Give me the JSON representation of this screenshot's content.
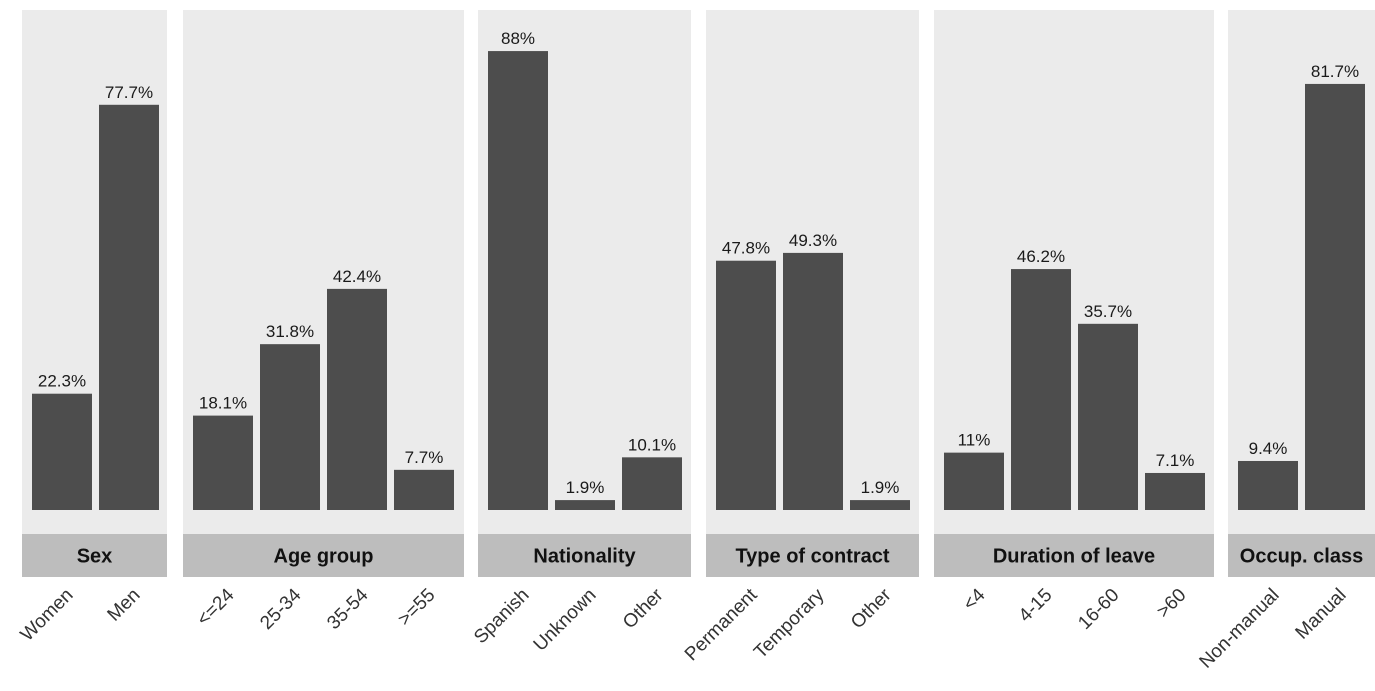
{
  "chart_data": {
    "type": "bar",
    "y_unit": "%",
    "ylim": [
      0,
      93
    ],
    "grid": false,
    "colors": {
      "bar": "#4d4d4d",
      "panel": "#ebebeb",
      "strip": "#bdbdbd"
    },
    "facets": [
      {
        "name": "Sex",
        "categories": [
          "Women",
          "Men"
        ],
        "values": [
          22.3,
          77.7
        ],
        "labels": [
          "22.3%",
          "77.7%"
        ]
      },
      {
        "name": "Age group",
        "categories": [
          "<=24",
          "25-34",
          "35-54",
          ">=55"
        ],
        "values": [
          18.1,
          31.8,
          42.4,
          7.7
        ],
        "labels": [
          "18.1%",
          "31.8%",
          "42.4%",
          "7.7%"
        ]
      },
      {
        "name": "Nationality",
        "categories": [
          "Spanish",
          "Unknown",
          "Other"
        ],
        "values": [
          88,
          1.9,
          10.1
        ],
        "labels": [
          "88%",
          "1.9%",
          "10.1%"
        ]
      },
      {
        "name": "Type of contract",
        "categories": [
          "Permanent",
          "Temporary",
          "Other"
        ],
        "values": [
          47.8,
          49.3,
          1.9
        ],
        "labels": [
          "47.8%",
          "49.3%",
          "1.9%"
        ]
      },
      {
        "name": "Duration of leave",
        "categories": [
          "<4",
          "4-15",
          "16-60",
          ">60"
        ],
        "values": [
          11,
          46.2,
          35.7,
          7.1
        ],
        "labels": [
          "11%",
          "46.2%",
          "35.7%",
          "7.1%"
        ]
      },
      {
        "name": "Occup. class",
        "categories": [
          "Non-manual",
          "Manual"
        ],
        "values": [
          9.4,
          81.7
        ],
        "labels": [
          "9.4%",
          "81.7%"
        ]
      }
    ]
  }
}
